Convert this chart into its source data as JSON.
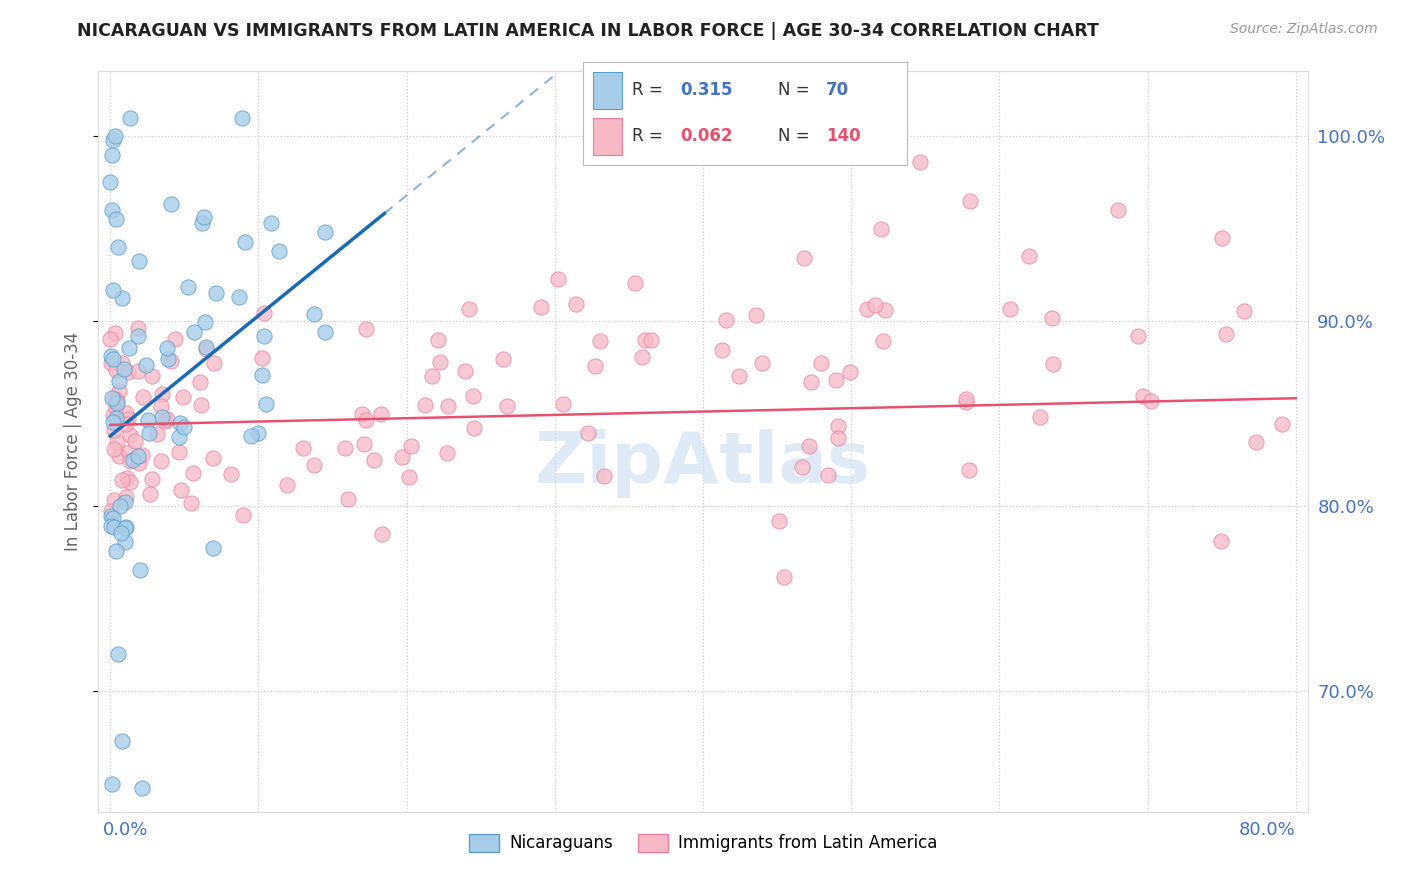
{
  "title": "NICARAGUAN VS IMMIGRANTS FROM LATIN AMERICA IN LABOR FORCE | AGE 30-34 CORRELATION CHART",
  "source": "Source: ZipAtlas.com",
  "ylabel": "In Labor Force | Age 30-34",
  "right_ytick_vals": [
    0.7,
    0.8,
    0.9,
    1.0
  ],
  "right_ytick_labels": [
    "70.0%",
    "80.0%",
    "90.0%",
    "100.0%"
  ],
  "xmin": 0.0,
  "xmax": 0.8,
  "ymin": 0.635,
  "ymax": 1.035,
  "blue_face": "#a8cde8",
  "blue_edge": "#5b9dc9",
  "pink_face": "#f5b8c4",
  "pink_edge": "#e87fa0",
  "blue_line_color": "#1a6bb5",
  "pink_line_color": "#e85070",
  "legend_r1_val": "0.315",
  "legend_n1_val": "70",
  "legend_r2_val": "0.062",
  "legend_n2_val": "140",
  "accent_color": "#4472c4",
  "watermark": "ZipAtlas",
  "watermark_color": "#c8dff0"
}
